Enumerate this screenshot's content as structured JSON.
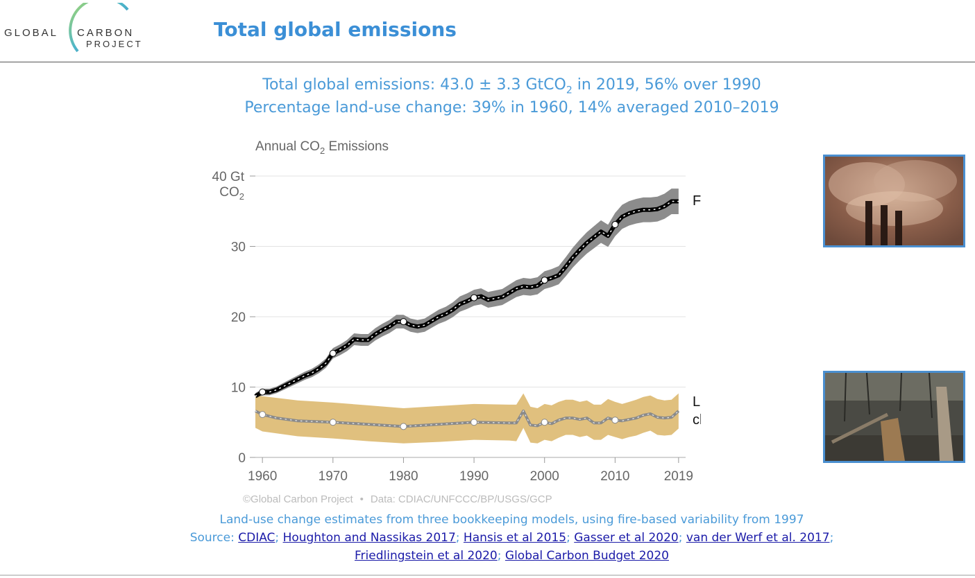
{
  "logo": {
    "word1": "GLOBAL",
    "word2": "CARBON",
    "word3": "PROJECT"
  },
  "page_title": "Total global emissions",
  "headline": {
    "line1_a": "Total global emissions: 43.0 ± 3.3 GtCO",
    "line1_sub": "2",
    "line1_b": " in 2019, 56% over 1990",
    "line2": "Percentage land-use change: 39% in 1960, 14% averaged 2010–2019"
  },
  "chart_data": {
    "type": "line",
    "title_a": "Annual CO",
    "title_sub": "2",
    "title_b": " Emissions",
    "ylabel_a": "40 Gt",
    "ylabel_b": "CO",
    "ylabel_sub": "2",
    "ylim": [
      0,
      40
    ],
    "xlim": [
      1959,
      2020
    ],
    "yticks": [
      0,
      10,
      20,
      30
    ],
    "xticks": [
      1960,
      1970,
      1980,
      1990,
      2000,
      2010,
      2019
    ],
    "grid": true,
    "series": [
      {
        "name": "Fossil carbon",
        "color": "#000000",
        "band_color": "#8c8c8c",
        "points": [
          [
            1959,
            8.7
          ],
          [
            1960,
            9.3
          ],
          [
            1961,
            9.3
          ],
          [
            1962,
            9.6
          ],
          [
            1963,
            10.1
          ],
          [
            1964,
            10.6
          ],
          [
            1965,
            11.1
          ],
          [
            1966,
            11.6
          ],
          [
            1967,
            12.0
          ],
          [
            1968,
            12.6
          ],
          [
            1969,
            13.4
          ],
          [
            1970,
            14.8
          ],
          [
            1971,
            15.3
          ],
          [
            1972,
            15.9
          ],
          [
            1973,
            16.8
          ],
          [
            1974,
            16.7
          ],
          [
            1975,
            16.7
          ],
          [
            1976,
            17.5
          ],
          [
            1977,
            18.1
          ],
          [
            1978,
            18.6
          ],
          [
            1979,
            19.3
          ],
          [
            1980,
            19.3
          ],
          [
            1981,
            18.8
          ],
          [
            1982,
            18.6
          ],
          [
            1983,
            18.8
          ],
          [
            1984,
            19.4
          ],
          [
            1985,
            20.0
          ],
          [
            1986,
            20.4
          ],
          [
            1987,
            21.0
          ],
          [
            1988,
            21.8
          ],
          [
            1989,
            22.2
          ],
          [
            1990,
            22.7
          ],
          [
            1991,
            22.9
          ],
          [
            1992,
            22.4
          ],
          [
            1993,
            22.6
          ],
          [
            1994,
            22.8
          ],
          [
            1995,
            23.4
          ],
          [
            1996,
            24.0
          ],
          [
            1997,
            24.3
          ],
          [
            1998,
            24.2
          ],
          [
            1999,
            24.4
          ],
          [
            2000,
            25.2
          ],
          [
            2001,
            25.5
          ],
          [
            2002,
            25.9
          ],
          [
            2003,
            27.1
          ],
          [
            2004,
            28.4
          ],
          [
            2005,
            29.5
          ],
          [
            2006,
            30.5
          ],
          [
            2007,
            31.3
          ],
          [
            2008,
            32.1
          ],
          [
            2009,
            31.5
          ],
          [
            2010,
            33.1
          ],
          [
            2011,
            34.2
          ],
          [
            2012,
            34.7
          ],
          [
            2013,
            35.0
          ],
          [
            2014,
            35.2
          ],
          [
            2015,
            35.2
          ],
          [
            2016,
            35.3
          ],
          [
            2017,
            35.7
          ],
          [
            2018,
            36.4
          ],
          [
            2019,
            36.4
          ]
        ],
        "uncertainty_frac": 0.05
      },
      {
        "name": "Land-use change",
        "name_line1": "Land-use",
        "name_line2": "change",
        "color": "#8a8a8a",
        "band_color": "#e0c07e",
        "points": [
          [
            1959,
            6.6
          ],
          [
            1960,
            6.1
          ],
          [
            1962,
            5.6
          ],
          [
            1965,
            5.2
          ],
          [
            1970,
            5.0
          ],
          [
            1975,
            4.7
          ],
          [
            1980,
            4.4
          ],
          [
            1985,
            4.7
          ],
          [
            1990,
            5.0
          ],
          [
            1995,
            4.9
          ],
          [
            1996,
            4.9
          ],
          [
            1997,
            6.6
          ],
          [
            1998,
            4.6
          ],
          [
            1999,
            4.5
          ],
          [
            2000,
            5.0
          ],
          [
            2001,
            4.8
          ],
          [
            2002,
            5.3
          ],
          [
            2003,
            5.6
          ],
          [
            2004,
            5.6
          ],
          [
            2005,
            5.4
          ],
          [
            2006,
            5.6
          ],
          [
            2007,
            4.9
          ],
          [
            2008,
            4.9
          ],
          [
            2009,
            5.6
          ],
          [
            2010,
            5.3
          ],
          [
            2011,
            5.2
          ],
          [
            2012,
            5.4
          ],
          [
            2013,
            5.6
          ],
          [
            2014,
            6.0
          ],
          [
            2015,
            6.2
          ],
          [
            2016,
            5.7
          ],
          [
            2017,
            5.6
          ],
          [
            2018,
            5.7
          ],
          [
            2019,
            6.6
          ]
        ],
        "band_low": [
          [
            1959,
            4.2
          ],
          [
            1960,
            3.7
          ],
          [
            1965,
            3.0
          ],
          [
            1970,
            2.7
          ],
          [
            1975,
            2.3
          ],
          [
            1980,
            2.0
          ],
          [
            1985,
            2.2
          ],
          [
            1990,
            2.5
          ],
          [
            1995,
            2.4
          ],
          [
            1996,
            2.3
          ],
          [
            1997,
            4.2
          ],
          [
            1998,
            2.1
          ],
          [
            1999,
            2.0
          ],
          [
            2000,
            2.5
          ],
          [
            2001,
            2.3
          ],
          [
            2002,
            2.8
          ],
          [
            2003,
            3.2
          ],
          [
            2004,
            3.2
          ],
          [
            2005,
            2.9
          ],
          [
            2006,
            3.1
          ],
          [
            2007,
            2.5
          ],
          [
            2008,
            2.5
          ],
          [
            2009,
            3.2
          ],
          [
            2010,
            2.9
          ],
          [
            2011,
            2.6
          ],
          [
            2012,
            2.9
          ],
          [
            2013,
            3.1
          ],
          [
            2014,
            3.5
          ],
          [
            2015,
            3.8
          ],
          [
            2016,
            3.2
          ],
          [
            2017,
            3.1
          ],
          [
            2018,
            3.2
          ],
          [
            2019,
            4.1
          ]
        ],
        "band_high": [
          [
            1959,
            8.8
          ],
          [
            1960,
            8.7
          ],
          [
            1965,
            8.1
          ],
          [
            1970,
            7.8
          ],
          [
            1975,
            7.4
          ],
          [
            1980,
            7.0
          ],
          [
            1985,
            7.3
          ],
          [
            1990,
            7.6
          ],
          [
            1995,
            7.5
          ],
          [
            1996,
            7.5
          ],
          [
            1997,
            9.1
          ],
          [
            1998,
            7.2
          ],
          [
            1999,
            7.0
          ],
          [
            2000,
            7.6
          ],
          [
            2001,
            7.4
          ],
          [
            2002,
            7.9
          ],
          [
            2003,
            8.2
          ],
          [
            2004,
            8.2
          ],
          [
            2005,
            7.9
          ],
          [
            2006,
            8.1
          ],
          [
            2007,
            7.5
          ],
          [
            2008,
            7.5
          ],
          [
            2009,
            8.3
          ],
          [
            2010,
            7.9
          ],
          [
            2011,
            7.6
          ],
          [
            2012,
            7.9
          ],
          [
            2013,
            8.2
          ],
          [
            2014,
            8.6
          ],
          [
            2015,
            8.8
          ],
          [
            2016,
            8.3
          ],
          [
            2017,
            8.1
          ],
          [
            2018,
            8.2
          ],
          [
            2019,
            9.1
          ]
        ]
      }
    ],
    "markers": [
      1960,
      1970,
      1980,
      1990,
      2000,
      2010
    ],
    "credit": "©Global Carbon Project",
    "credit_sep": "•",
    "credit_data": "Data: CDIAC/UNFCCC/BP/USGS/GCP"
  },
  "notes": {
    "line1": "Land-use change estimates from three bookkeeping models, using fire-based variability from 1997",
    "source_label": "Source: ",
    "links": [
      "CDIAC",
      "Houghton and Nassikas 2017",
      "Hansis et al 2015",
      "Gasser et al 2020",
      "van der Werf et al. 2017",
      "Friedlingstein et al 2020",
      "Global Carbon Budget 2020"
    ],
    "sep": ";"
  },
  "colors": {
    "accent": "#3b8fd6",
    "link": "#1a1aa8",
    "photo_border": "#4a8fd0"
  }
}
